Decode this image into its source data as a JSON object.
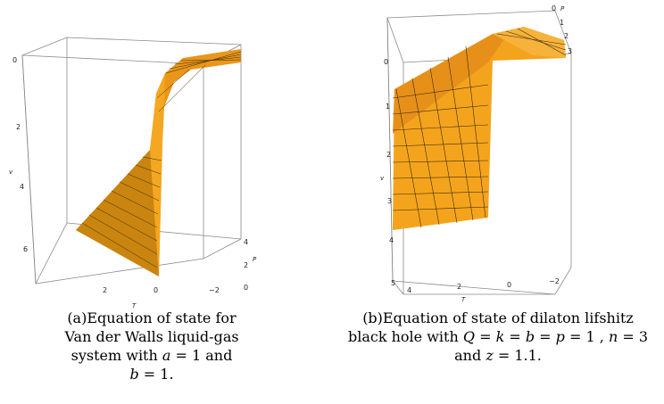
{
  "figure_a": {
    "axis_labels": {
      "v": "v",
      "T": "T",
      "P": "P"
    },
    "v_ticks": [
      "0",
      "2",
      "4",
      "6"
    ],
    "T_ticks": [
      "2",
      "0",
      "−2"
    ],
    "P_ticks": [
      "4",
      "2",
      "0"
    ],
    "caption": {
      "l1": "(a)Equation of state for",
      "l2": "Van der Walls liquid-gas",
      "l3a": "system with ",
      "l3m1": "a",
      "l3b": " = 1 and",
      "l4m": "b",
      "l4b": " = 1."
    }
  },
  "figure_b": {
    "axis_labels": {
      "v": "v",
      "T": "T",
      "P": "P"
    },
    "v_ticks": [
      "0",
      "1",
      "2",
      "3",
      "4",
      "5"
    ],
    "T_ticks": [
      "4",
      "2",
      "0",
      "−2"
    ],
    "P_ticks": [
      "0",
      "1",
      "2",
      "3"
    ],
    "caption": {
      "l1": "(b)Equation of state of dilaton lifshitz",
      "l2a": "black hole with ",
      "l2m": "Q",
      "l2b": " = ",
      "l2m2": "k",
      "l2c": " = ",
      "l2m3": "b",
      "l2d": " = ",
      "l2m4": "p",
      "l2e": " = 1 , ",
      "l2m5": "n",
      "l2f": " = 3",
      "l3a": "and ",
      "l3m": "z",
      "l3b": " = 1.1."
    }
  },
  "colors": {
    "surface": "#f2a21a",
    "surface_dark": "#c57c0c",
    "mesh": "#3a2a10",
    "box": "#888888"
  }
}
